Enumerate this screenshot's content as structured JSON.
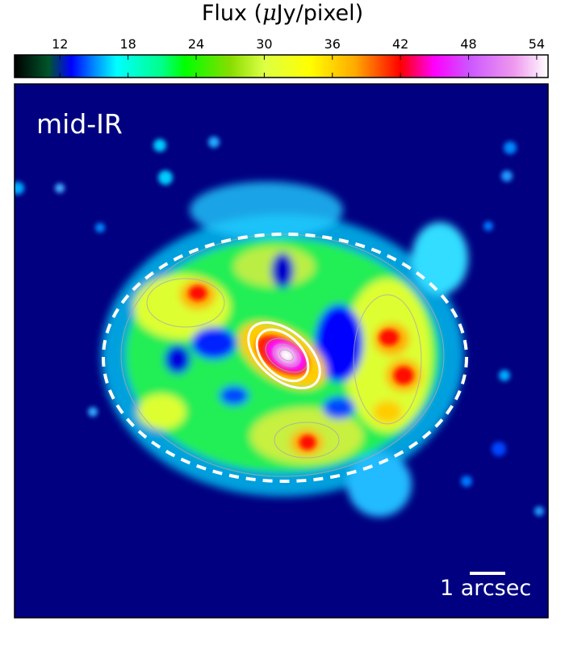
{
  "colorbar": {
    "title_prefix": "Flux (",
    "title_mu": "μ",
    "title_suffix": "Jy/pixel)",
    "ticks": [
      "12",
      "18",
      "24",
      "30",
      "36",
      "42",
      "48",
      "54"
    ],
    "tick_values": [
      12,
      18,
      24,
      30,
      36,
      42,
      48,
      54
    ],
    "range": [
      8,
      55
    ],
    "colormap_stops": [
      {
        "value": 8,
        "color": "#000000"
      },
      {
        "value": 11,
        "color": "#00552a"
      },
      {
        "value": 13,
        "color": "#0000ff"
      },
      {
        "value": 15,
        "color": "#0088ff"
      },
      {
        "value": 17,
        "color": "#00ffff"
      },
      {
        "value": 21,
        "color": "#00ff88"
      },
      {
        "value": 23,
        "color": "#00ff00"
      },
      {
        "value": 27,
        "color": "#88dd00"
      },
      {
        "value": 30,
        "color": "#ddff44"
      },
      {
        "value": 34,
        "color": "#ffff00"
      },
      {
        "value": 38,
        "color": "#ffaa00"
      },
      {
        "value": 42,
        "color": "#ff0000"
      },
      {
        "value": 45,
        "color": "#ff00ff"
      },
      {
        "value": 48,
        "color": "#cc55ff"
      },
      {
        "value": 52,
        "color": "#ee99ee"
      },
      {
        "value": 55,
        "color": "#ffffff"
      }
    ]
  },
  "image": {
    "panel_label": "mid-IR",
    "scale_bar_label": "1 arcsec",
    "background_color": "#000080"
  }
}
